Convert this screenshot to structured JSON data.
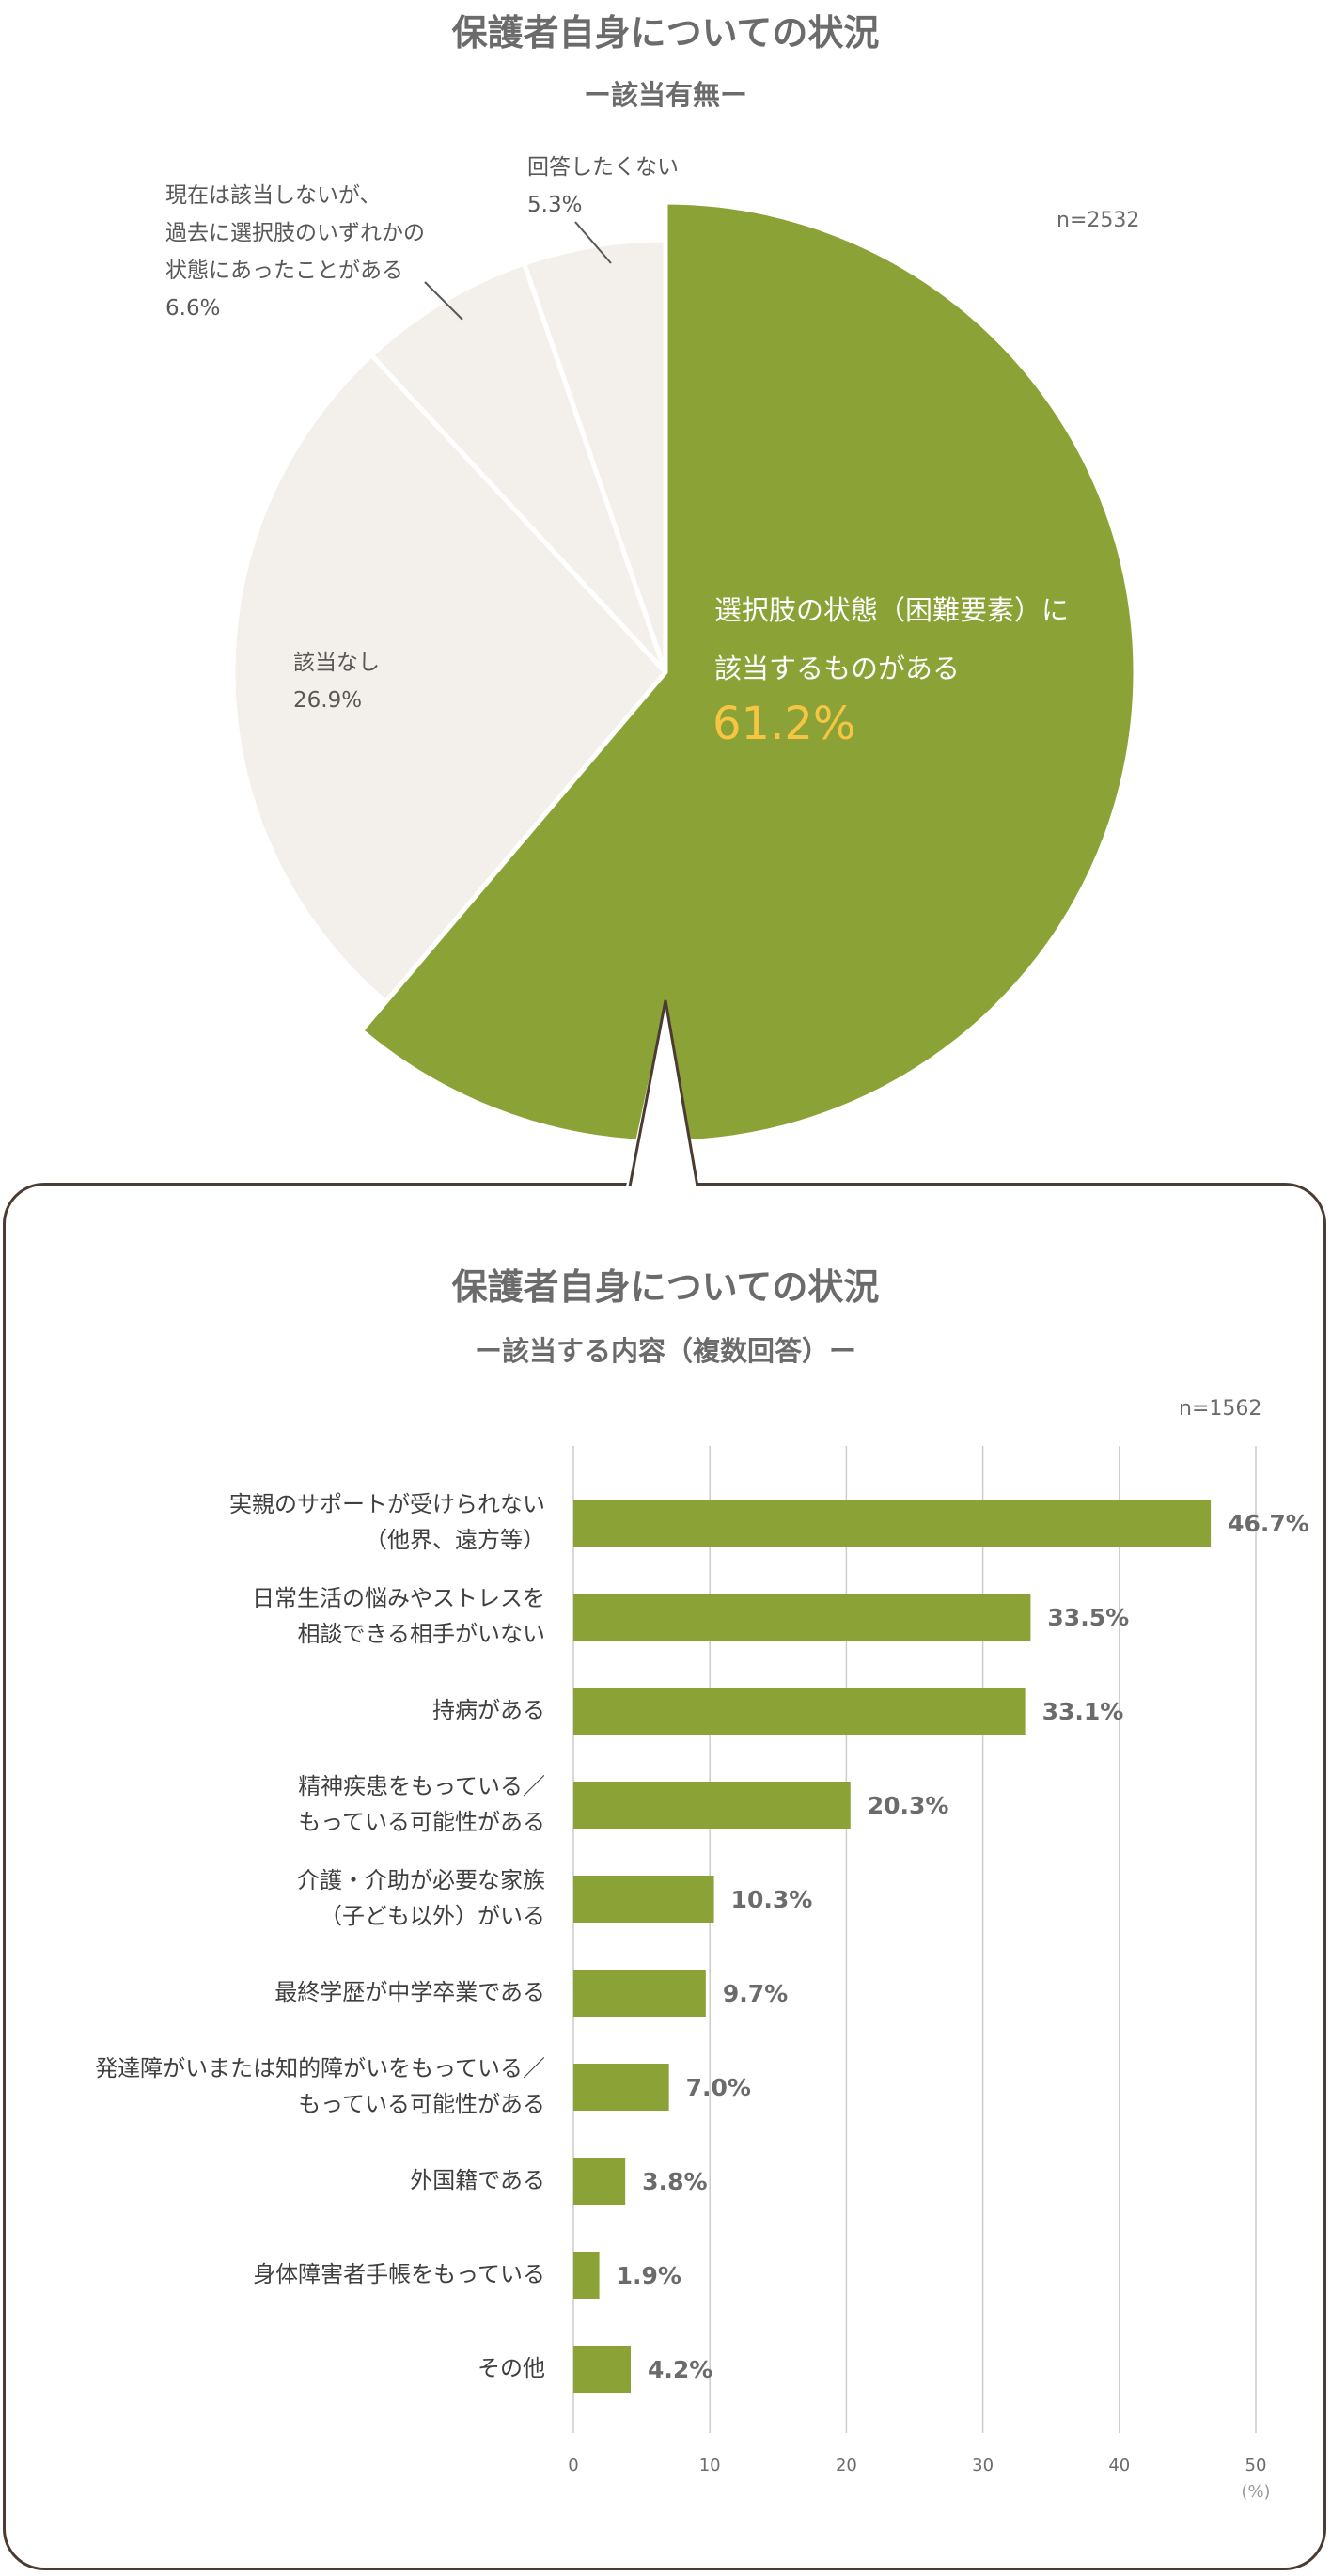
{
  "top": {
    "title": "保護者自身についての状況",
    "subtitle": "ー該当有無ー",
    "n_label": "n=2532"
  },
  "bottom": {
    "title": "保護者自身についての状況",
    "subtitle": "ー該当する内容（複数回答）ー",
    "n_label": "n=1562",
    "unit_label": "(%)"
  },
  "colors": {
    "green": "#8ba236",
    "light": "#f3f0ec",
    "yellow": "#f6c543",
    "border": "#4a3c32",
    "grid": "#cccccc"
  },
  "chart_data": [
    {
      "type": "pie",
      "title": "保護者自身についての状況",
      "subtitle": "ー該当有無ー",
      "n": "n=2532",
      "slices": [
        {
          "label": "選択肢の状態（困難要素）に該当するものがある",
          "label_lines": [
            "選択肢の状態（困難要素）に",
            "該当するものがある"
          ],
          "value": 61.2,
          "value_text": "61.2%"
        },
        {
          "label": "該当なし",
          "label_lines": [
            "該当なし"
          ],
          "value": 26.9,
          "value_text": "26.9%"
        },
        {
          "label": "現在は該当しないが、過去に選択肢のいずれかの状態にあったことがある",
          "label_lines": [
            "現在は該当しないが、",
            "過去に選択肢のいずれかの",
            "状態にあったことがある"
          ],
          "value": 6.6,
          "value_text": "6.6%"
        },
        {
          "label": "回答したくない",
          "label_lines": [
            "回答したくない"
          ],
          "value": 5.3,
          "value_text": "5.3%"
        }
      ]
    },
    {
      "type": "bar",
      "orientation": "horizontal",
      "title": "保護者自身についての状況",
      "subtitle": "ー該当する内容（複数回答）ー",
      "n": "n=1562",
      "xlabel": "(%)",
      "xlim": [
        0,
        50
      ],
      "xticks": [
        "0",
        "10",
        "20",
        "30",
        "40",
        "50"
      ],
      "grid": true,
      "categories": [
        [
          "実親のサポートが受けられない",
          "（他界、遠方等）"
        ],
        [
          "日常生活の悩みやストレスを",
          "相談できる相手がいない"
        ],
        [
          "持病がある"
        ],
        [
          "精神疾患をもっている／",
          "もっている可能性がある"
        ],
        [
          "介護・介助が必要な家族",
          "（子ども以外）がいる"
        ],
        [
          "最終学歴が中学卒業である"
        ],
        [
          "発達障がいまたは知的障がいをもっている／",
          "もっている可能性がある"
        ],
        [
          "外国籍である"
        ],
        [
          "身体障害者手帳をもっている"
        ],
        [
          "その他"
        ]
      ],
      "values": [
        46.7,
        33.5,
        33.1,
        20.3,
        10.3,
        9.7,
        7.0,
        3.8,
        1.9,
        4.2
      ],
      "value_labels": [
        "46.7%",
        "33.5%",
        "33.1%",
        "20.3%",
        "10.3%",
        "9.7%",
        "7.0%",
        "3.8%",
        "1.9%",
        "4.2%"
      ]
    }
  ]
}
